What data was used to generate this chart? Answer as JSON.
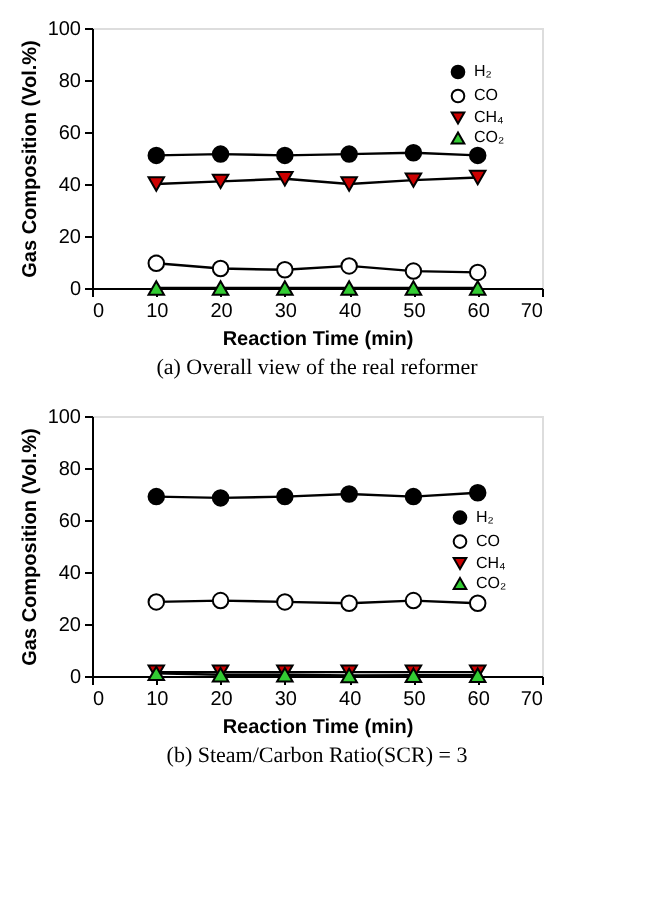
{
  "chart_data": [
    {
      "type": "line",
      "xlabel": "Reaction Time (min)",
      "ylabel": "Gas Composition (Vol.%)",
      "annotations": [
        "(a)  Overall  view  of  the  real  reformer"
      ],
      "x": [
        10,
        20,
        30,
        40,
        50,
        60
      ],
      "xlim": [
        0,
        70
      ],
      "xticks": [
        0,
        10,
        20,
        30,
        40,
        50,
        60,
        70
      ],
      "ylim": [
        0,
        100
      ],
      "yticks": [
        0,
        20,
        40,
        60,
        80,
        100
      ],
      "grid": false,
      "legend": "top right",
      "line_style": "solid",
      "series": [
        {
          "name": "H₂",
          "color": "#000000",
          "marker": "circle",
          "values": [
            51,
            51.5,
            51,
            51.5,
            52,
            51
          ]
        },
        {
          "name": "CO",
          "color": "#ffffff",
          "marker": "circle",
          "values": [
            9.5,
            7.5,
            7,
            8.5,
            6.5,
            6
          ]
        },
        {
          "name": "CH₄",
          "color": "#cc0000",
          "marker": "triangle-down",
          "values": [
            40,
            41,
            42,
            40,
            41.5,
            42.5
          ]
        },
        {
          "name": "CO₂",
          "color": "#33cc33",
          "marker": "triangle",
          "values": [
            0,
            0,
            0,
            0,
            0,
            0
          ]
        }
      ]
    },
    {
      "type": "line",
      "xlabel": "Reaction Time (min)",
      "ylabel": "Gas Composition (Vol.%)",
      "annotations": [
        "(b)  Steam/Carbon  Ratio(SCR)  =  3"
      ],
      "x": [
        10,
        20,
        30,
        40,
        50,
        60
      ],
      "xlim": [
        0,
        70
      ],
      "xticks": [
        0,
        10,
        20,
        30,
        40,
        50,
        60,
        70
      ],
      "ylim": [
        0,
        100
      ],
      "yticks": [
        0,
        20,
        40,
        60,
        80,
        100
      ],
      "grid": false,
      "legend": "right",
      "line_style": "solid",
      "series": [
        {
          "name": "H₂",
          "color": "#000000",
          "marker": "circle",
          "values": [
            69,
            68.5,
            69,
            70,
            69,
            70.5
          ]
        },
        {
          "name": "CO",
          "color": "#ffffff",
          "marker": "circle",
          "values": [
            28.5,
            29,
            28.5,
            28,
            29,
            28
          ]
        },
        {
          "name": "CH₄",
          "color": "#cc0000",
          "marker": "triangle-down",
          "values": [
            1.5,
            1.5,
            1.5,
            1.5,
            1.5,
            1.5
          ]
        },
        {
          "name": "CO₂",
          "color": "#33cc33",
          "marker": "triangle",
          "values": [
            1,
            0.5,
            0.5,
            0.2,
            0.3,
            0.3
          ]
        }
      ]
    }
  ]
}
